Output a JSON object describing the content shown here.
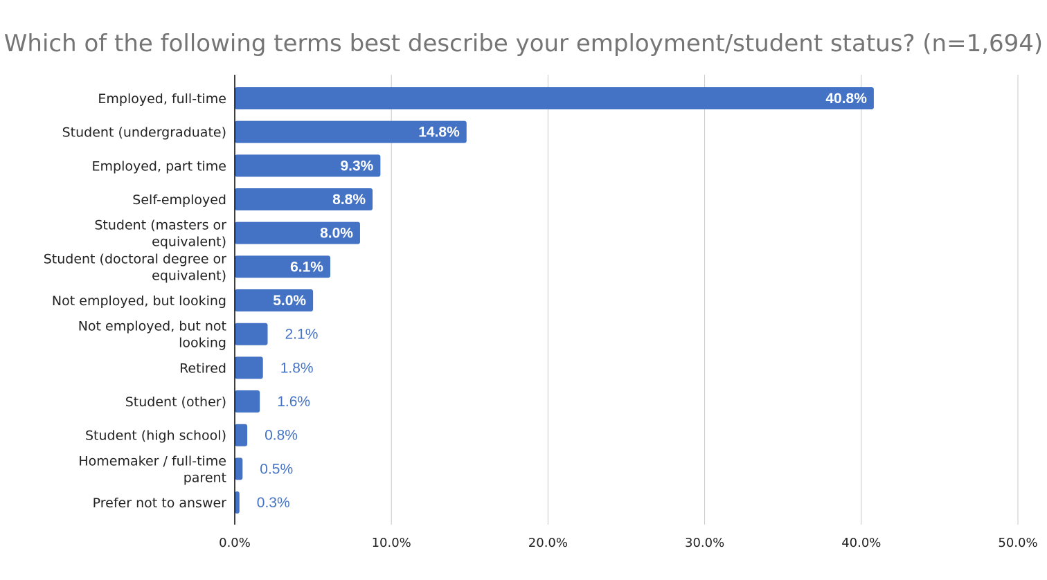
{
  "chart_data": {
    "type": "bar",
    "orientation": "horizontal",
    "title": "Which of the following terms best describe your employment/student status? (n=1,694)",
    "xlabel": "",
    "ylabel": "",
    "categories": [
      "Employed, full-time",
      "Student (undergraduate)",
      "Employed, part time",
      "Self-employed",
      "Student (masters or equivalent)",
      "Student (doctoral degree or equivalent)",
      "Not employed, but looking",
      "Not employed, but not looking",
      "Retired",
      "Student (other)",
      "Student (high school)",
      "Homemaker / full-time parent",
      "Prefer not to answer"
    ],
    "category_label_lines": [
      [
        "Employed, full-time"
      ],
      [
        "Student (undergraduate)"
      ],
      [
        "Employed, part time"
      ],
      [
        "Self-employed"
      ],
      [
        "Student (masters or",
        "equivalent)"
      ],
      [
        "Student (doctoral degree or",
        "equivalent)"
      ],
      [
        "Not employed, but looking"
      ],
      [
        "Not employed, but not",
        "looking"
      ],
      [
        "Retired"
      ],
      [
        "Student (other)"
      ],
      [
        "Student (high school)"
      ],
      [
        "Homemaker / full-time",
        "parent"
      ],
      [
        "Prefer not to answer"
      ]
    ],
    "values": [
      40.8,
      14.8,
      9.3,
      8.8,
      8.0,
      6.1,
      5.0,
      2.1,
      1.8,
      1.6,
      0.8,
      0.5,
      0.3
    ],
    "value_labels": [
      "40.8%",
      "14.8%",
      "9.3%",
      "8.8%",
      "8.0%",
      "6.1%",
      "5.0%",
      "2.1%",
      "1.8%",
      "1.6%",
      "0.8%",
      "0.5%",
      "0.3%"
    ],
    "xlim": [
      0,
      50
    ],
    "x_ticks": [
      "0.0%",
      "10.0%",
      "20.0%",
      "30.0%",
      "40.0%",
      "50.0%"
    ],
    "x_tick_values": [
      0,
      10,
      20,
      30,
      40,
      50
    ],
    "grid": "vertical",
    "legend": "none",
    "colors": {
      "bar": "#4472c4",
      "grid": "#c8c8c8",
      "axis": "#000000",
      "title": "#757575",
      "label_inside": "#ffffff",
      "label_outside": "#4472c4"
    }
  }
}
